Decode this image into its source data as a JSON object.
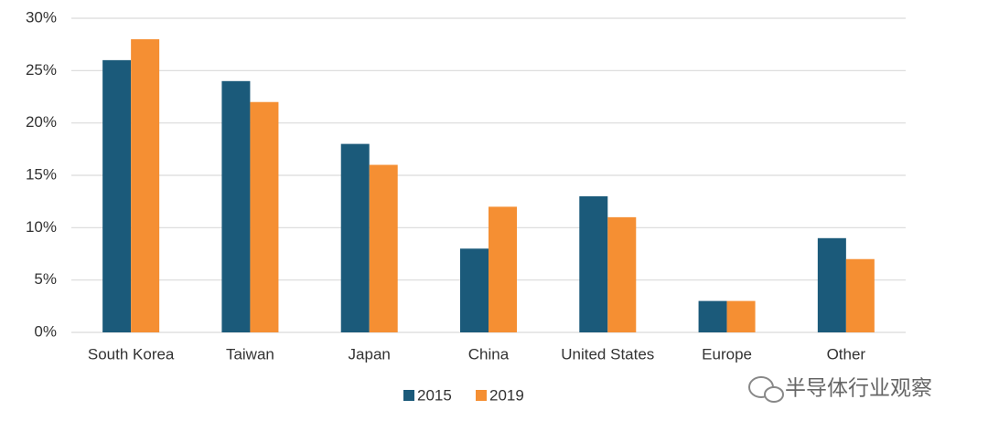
{
  "chart_data": {
    "type": "bar",
    "categories": [
      "South Korea",
      "Taiwan",
      "Japan",
      "China",
      "United States",
      "Europe",
      "Other"
    ],
    "series": [
      {
        "name": "2015",
        "color": "#1b5a7a",
        "values": [
          26,
          24,
          18,
          8,
          13,
          3,
          9
        ]
      },
      {
        "name": "2019",
        "color": "#f58f33",
        "values": [
          28,
          22,
          16,
          12,
          11,
          3,
          7
        ]
      }
    ],
    "ylim": [
      0,
      30
    ],
    "yticks": [
      {
        "value": 0,
        "label": "0%"
      },
      {
        "value": 5,
        "label": "5%"
      },
      {
        "value": 10,
        "label": "10%"
      },
      {
        "value": 15,
        "label": "15%"
      },
      {
        "value": 20,
        "label": "20%"
      },
      {
        "value": 25,
        "label": "25%"
      },
      {
        "value": 30,
        "label": "30%"
      }
    ],
    "grid": true,
    "legend": "bottom"
  },
  "watermark": "半导体行业观察"
}
